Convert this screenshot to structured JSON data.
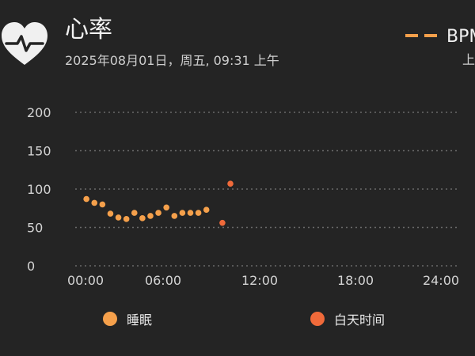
{
  "header": {
    "title": "心率",
    "datetime": "2025年08月01日，周五, 09:31 上午",
    "legend_unit": "BPM",
    "legend_ampm": "上"
  },
  "colors": {
    "sleep": "#f5a04b",
    "daytime": "#f06a3a",
    "grid": "#6a6a6a",
    "background": "#242424"
  },
  "chart_data": {
    "type": "scatter",
    "ylim": [
      0,
      200
    ],
    "y_ticks": [
      "200",
      "150",
      "100",
      "50",
      "0"
    ],
    "xlim": [
      0,
      24
    ],
    "x_ticks": [
      "00:00",
      "06:00",
      "12:00",
      "18:00",
      "24:00"
    ],
    "grid": true,
    "series": [
      {
        "name": "睡眠",
        "x": [
          0.7,
          1.2,
          1.7,
          2.2,
          2.7,
          3.2,
          3.7,
          4.2,
          4.7,
          5.2,
          5.7,
          6.2,
          6.7,
          7.2,
          7.7,
          8.2
        ],
        "y": [
          87,
          82,
          80,
          68,
          63,
          61,
          69,
          62,
          65,
          69,
          76,
          65,
          69,
          69,
          69,
          73
        ]
      },
      {
        "name": "白天时间",
        "x": [
          9.2,
          9.7
        ],
        "y": [
          56,
          107
        ]
      }
    ]
  }
}
